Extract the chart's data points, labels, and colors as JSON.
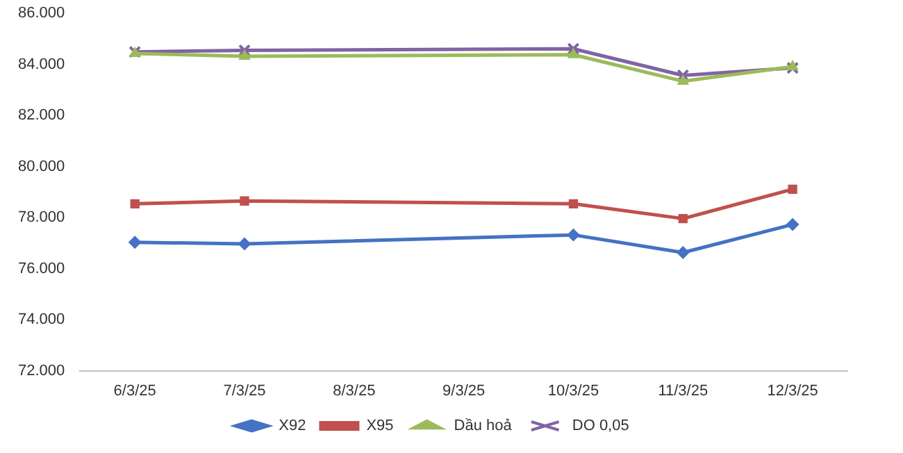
{
  "chart_data": {
    "type": "line",
    "categories": [
      "6/3/25",
      "7/3/25",
      "8/3/25",
      "9/3/25",
      "10/3/25",
      "11/3/25",
      "12/3/25"
    ],
    "series": [
      {
        "name": "X92",
        "color": "#4472c4",
        "marker": "diamond",
        "values": [
          77030,
          76970,
          null,
          null,
          77320,
          76630,
          77730
        ]
      },
      {
        "name": "X95",
        "color": "#c0504d",
        "marker": "square",
        "values": [
          78540,
          78650,
          null,
          null,
          78540,
          77960,
          79110
        ]
      },
      {
        "name": "Dầu hoả",
        "color": "#9bbb59",
        "marker": "triangle",
        "values": [
          84430,
          84320,
          null,
          null,
          84380,
          83340,
          83910
        ]
      },
      {
        "name": "DO 0,05",
        "color": "#8064a2",
        "marker": "cross",
        "values": [
          84490,
          84550,
          null,
          null,
          84610,
          83570,
          83860
        ]
      }
    ],
    "ylim": [
      72000,
      86000
    ],
    "yticks": [
      {
        "value": 72000,
        "label": "72.000"
      },
      {
        "value": 74000,
        "label": "74.000"
      },
      {
        "value": 76000,
        "label": "76.000"
      },
      {
        "value": 78000,
        "label": "78.000"
      },
      {
        "value": 80000,
        "label": "80.000"
      },
      {
        "value": 82000,
        "label": "82.000"
      },
      {
        "value": 84000,
        "label": "84.000"
      },
      {
        "value": 86000,
        "label": "86.000"
      }
    ],
    "grid": false,
    "legend": "bottom",
    "line_style": "solid"
  }
}
